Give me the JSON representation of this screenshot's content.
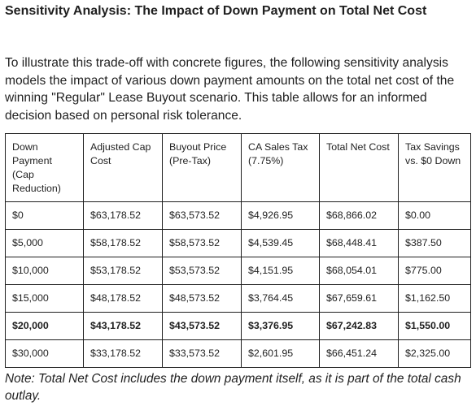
{
  "heading": "Sensitivity Analysis: The Impact of Down Payment on Total Net Cost",
  "intro": "To illustrate this trade-off with concrete figures, the following sensitivity analysis models the impact of various down payment amounts on the total net cost of the winning \"Regular\" Lease Buyout scenario. This table allows for an informed decision based on personal risk tolerance.",
  "table": {
    "headers": [
      "Down Payment (Cap Reduction)",
      "Adjusted Cap Cost",
      "Buyout Price (Pre-Tax)",
      "CA Sales Tax (7.75%)",
      "Total Net Cost",
      "Tax Savings vs. $0 Down"
    ],
    "rows": [
      [
        "$0",
        "$63,178.52",
        "$63,573.52",
        "$4,926.95",
        "$68,866.02",
        "$0.00"
      ],
      [
        "$5,000",
        "$58,178.52",
        "$58,573.52",
        "$4,539.45",
        "$68,448.41",
        "$387.50"
      ],
      [
        "$10,000",
        "$53,178.52",
        "$53,573.52",
        "$4,151.95",
        "$68,054.01",
        "$775.00"
      ],
      [
        "$15,000",
        "$48,178.52",
        "$48,573.52",
        "$3,764.45",
        "$67,659.61",
        "$1,162.50"
      ],
      [
        "$20,000",
        "$43,178.52",
        "$43,573.52",
        "$3,376.95",
        "$67,242.83",
        "$1,550.00"
      ],
      [
        "$30,000",
        "$33,178.52",
        "$33,573.52",
        "$2,601.95",
        "$66,451.24",
        "$2,325.00"
      ]
    ]
  },
  "note": "Note: Total Net Cost includes the down payment itself, as it is part of the total cash outlay."
}
